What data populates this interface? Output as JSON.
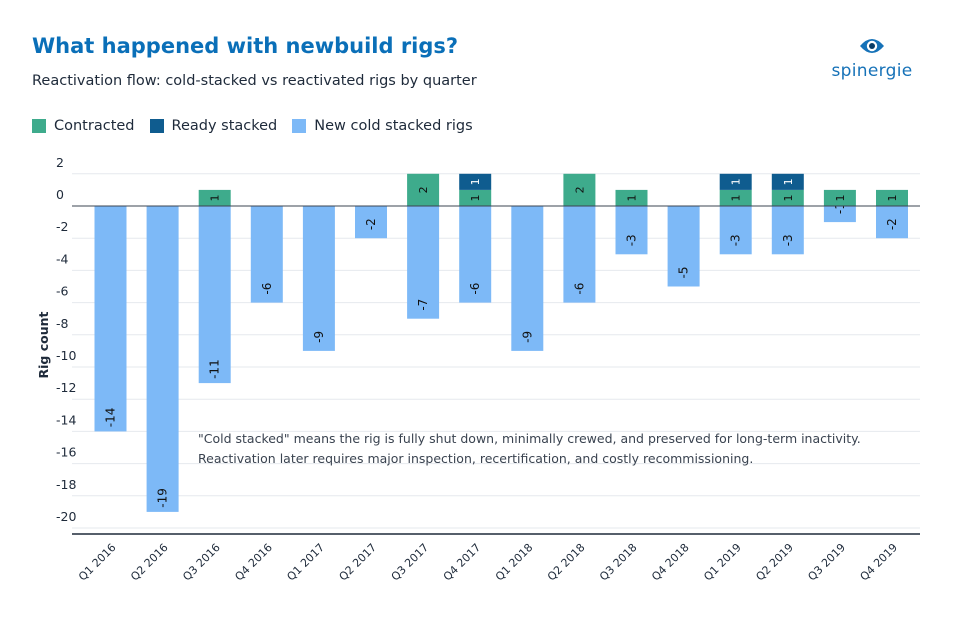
{
  "header": {
    "title": "What happened with newbuild rigs?",
    "subtitle": "Reactivation flow: cold-stacked vs reactivated rigs by quarter"
  },
  "brand": {
    "name": "spinergie",
    "logo_icon": "eye-icon",
    "color": "#1672b8"
  },
  "legend": {
    "items": [
      {
        "label": "Contracted",
        "color": "#3eab8c"
      },
      {
        "label": "Ready stacked",
        "color": "#0f5c8f"
      },
      {
        "label": "New cold stacked rigs",
        "color": "#7db9f7"
      }
    ]
  },
  "note": {
    "lines": [
      "\"Cold stacked\" means the rig is fully shut down, minimally crewed, and preserved for long-term inactivity.",
      "Reactivation later requires major inspection, recertification, and costly recommissioning."
    ]
  },
  "chart_data": {
    "type": "bar",
    "stacked": true,
    "title": "What happened with newbuild rigs?",
    "subtitle": "Reactivation flow: cold-stacked vs reactivated rigs by quarter",
    "xlabel": "",
    "ylabel": "Rig count",
    "ylim": [
      -20,
      2
    ],
    "yticks": [
      2,
      0,
      -2,
      -4,
      -6,
      -8,
      -10,
      -12,
      -14,
      -16,
      -18,
      -20
    ],
    "grid": true,
    "categories": [
      "Q1 2016",
      "Q2 2016",
      "Q3 2016",
      "Q4 2016",
      "Q1 2017",
      "Q2 2017",
      "Q3 2017",
      "Q4 2017",
      "Q1 2018",
      "Q2 2018",
      "Q3 2018",
      "Q4 2018",
      "Q1 2019",
      "Q2 2019",
      "Q3 2019",
      "Q4 2019"
    ],
    "series": [
      {
        "name": "Contracted",
        "color": "#3eab8c",
        "values": [
          0,
          0,
          1,
          0,
          0,
          0,
          2,
          1,
          0,
          2,
          1,
          0,
          1,
          1,
          1,
          1
        ]
      },
      {
        "name": "Ready stacked",
        "color": "#0f5c8f",
        "values": [
          0,
          0,
          0,
          0,
          0,
          0,
          0,
          1,
          0,
          0,
          0,
          0,
          1,
          1,
          0,
          0
        ]
      },
      {
        "name": "New cold stacked rigs",
        "color": "#7db9f7",
        "values": [
          -14,
          -19,
          -11,
          -6,
          -9,
          -2,
          -7,
          -6,
          -9,
          -6,
          -3,
          -5,
          -3,
          -3,
          -1,
          -2
        ]
      }
    ]
  }
}
